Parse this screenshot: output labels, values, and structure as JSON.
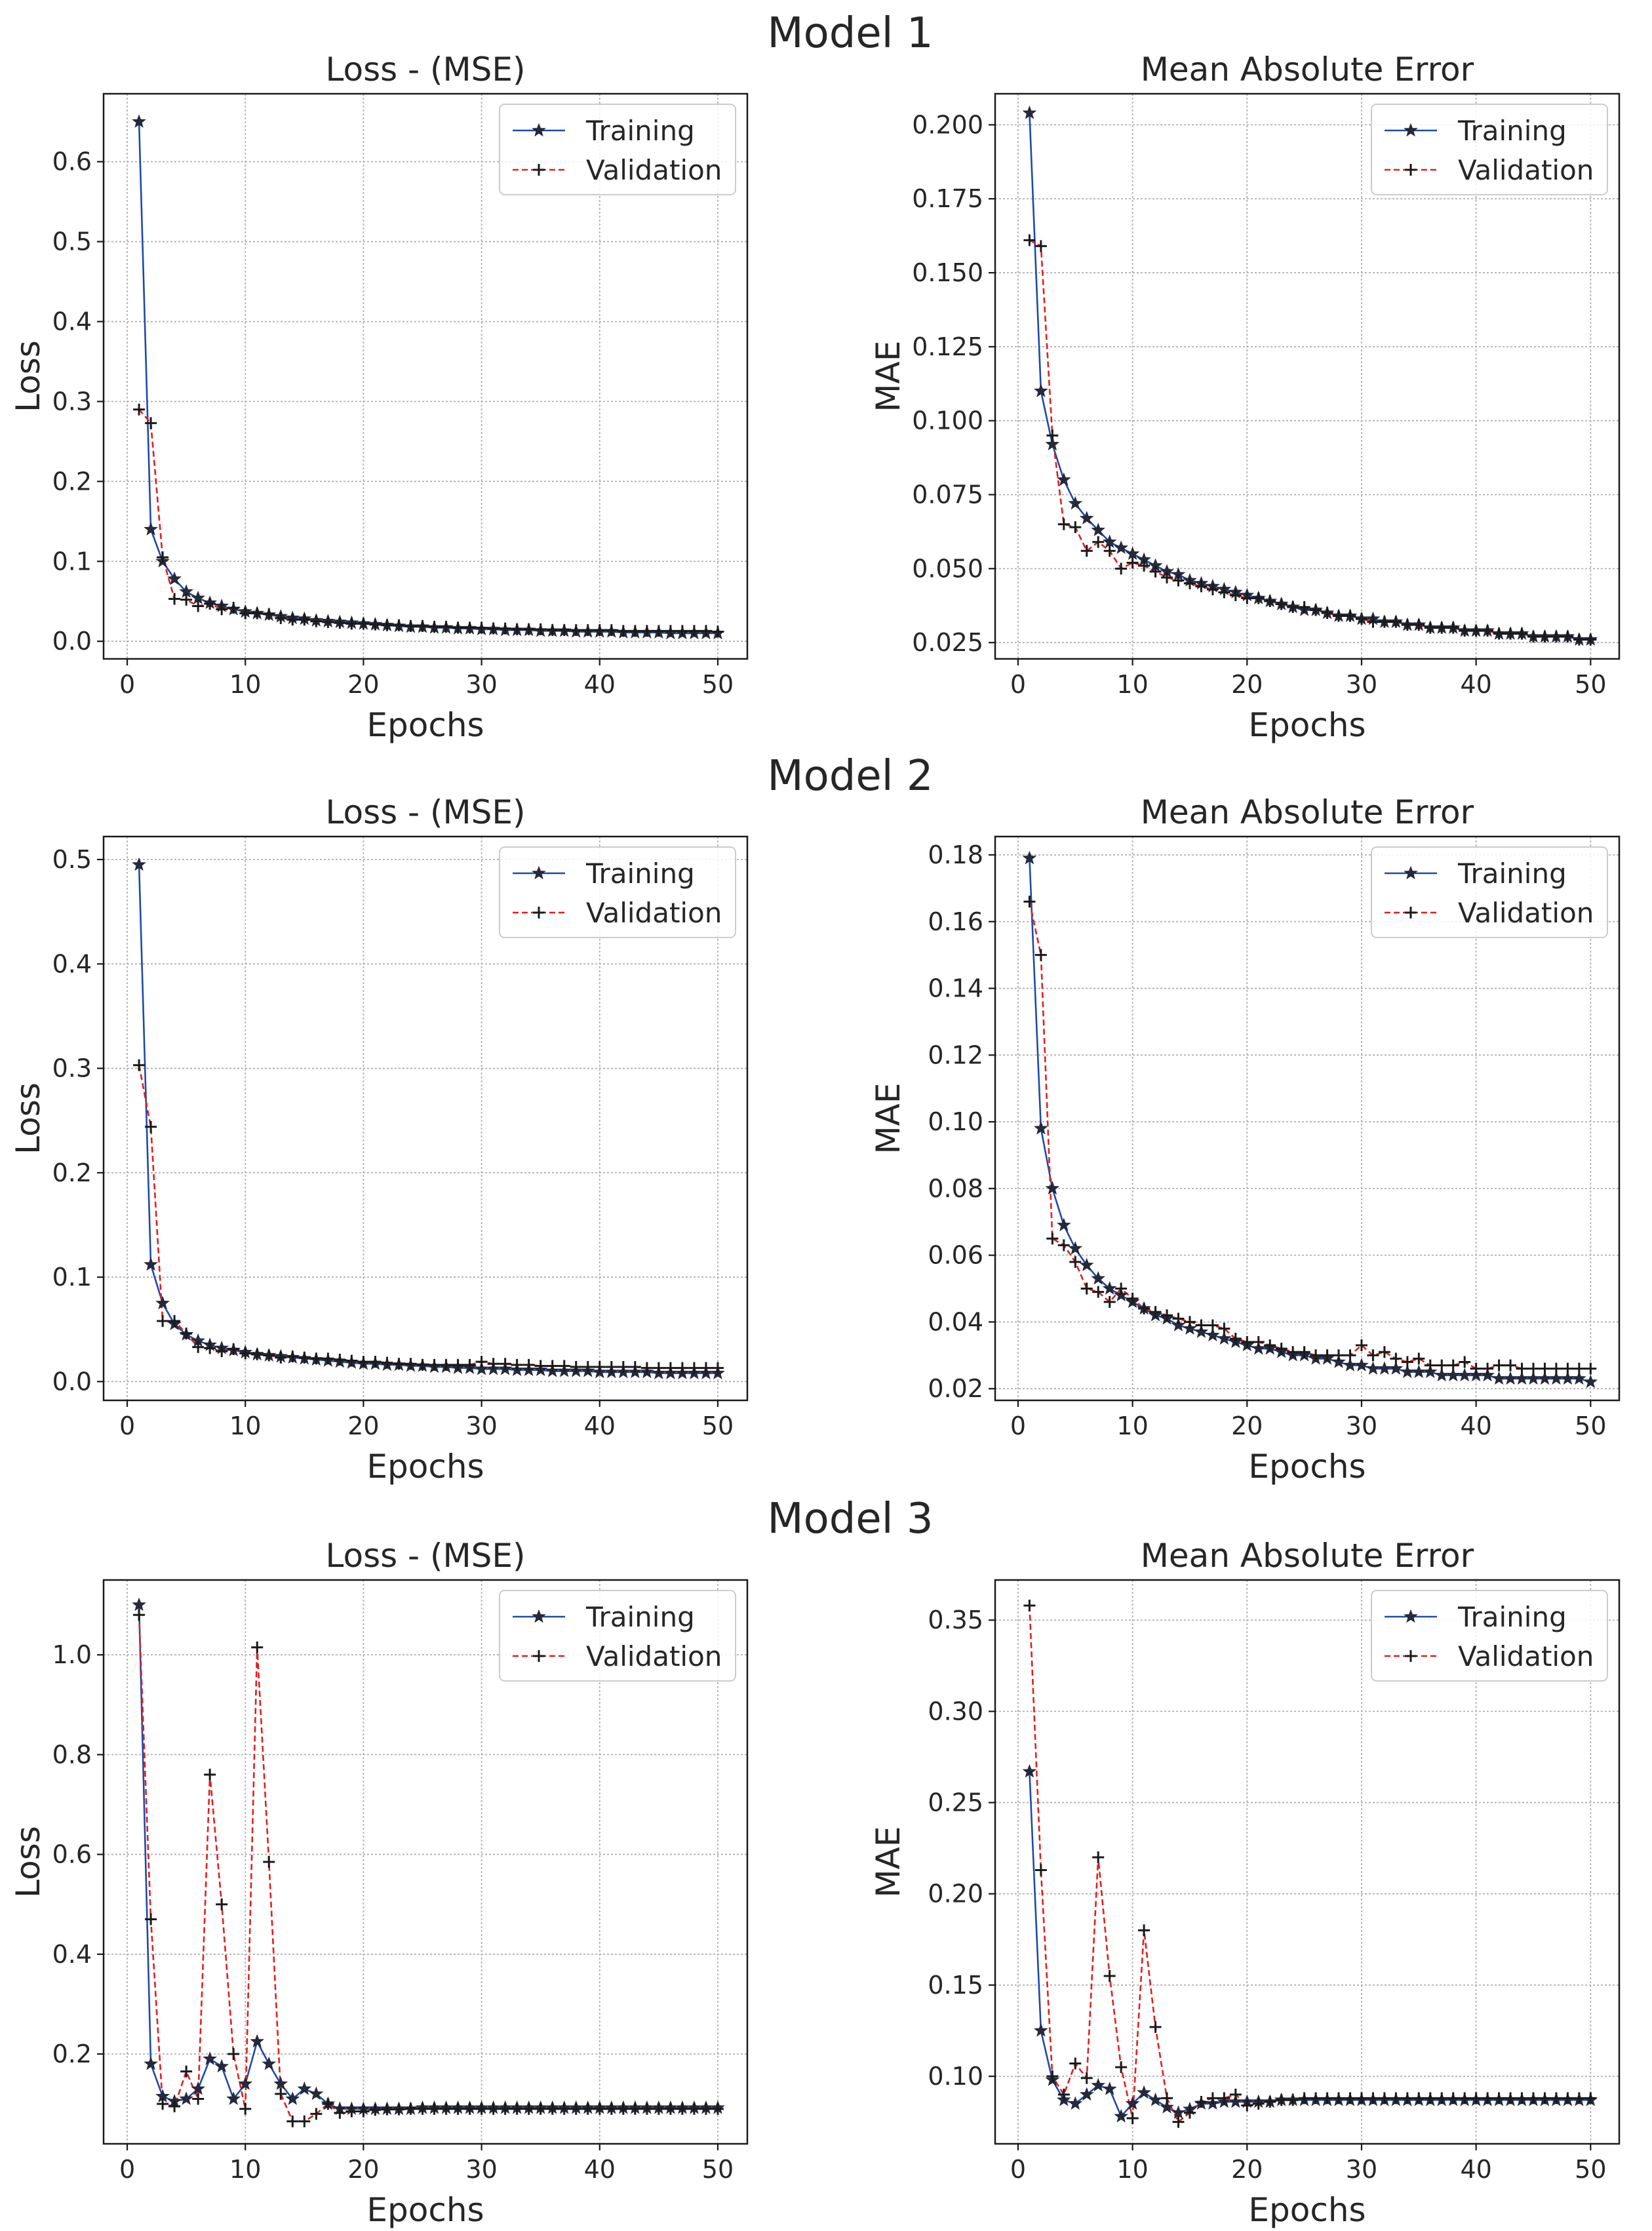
{
  "figure": {
    "models": [
      "Model 1",
      "Model 2",
      "Model 3"
    ]
  },
  "chart_data": [
    {
      "type": "line",
      "model": "Model 1",
      "title": "Loss - (MSE)",
      "xlabel": "Epochs",
      "ylabel": "Loss",
      "xlim": [
        -2,
        52.5
      ],
      "ylim": [
        -0.022,
        0.685
      ],
      "xticks": [
        0,
        10,
        20,
        30,
        40,
        50
      ],
      "xtick_labels": [
        "0",
        "10",
        "20",
        "30",
        "40",
        "50"
      ],
      "yticks": [
        0.0,
        0.1,
        0.2,
        0.3,
        0.4,
        0.5,
        0.6
      ],
      "ytick_labels": [
        "0.0",
        "0.1",
        "0.2",
        "0.3",
        "0.4",
        "0.5",
        "0.6"
      ],
      "legend": [
        "Training",
        "Validation"
      ],
      "legend_position": "top-right",
      "series": [
        {
          "name": "Training",
          "values": [
            0.65,
            0.14,
            0.1,
            0.078,
            0.062,
            0.054,
            0.048,
            0.044,
            0.04,
            0.037,
            0.035,
            0.033,
            0.031,
            0.029,
            0.028,
            0.026,
            0.025,
            0.024,
            0.023,
            0.022,
            0.021,
            0.02,
            0.019,
            0.018,
            0.018,
            0.017,
            0.017,
            0.016,
            0.016,
            0.015,
            0.015,
            0.014,
            0.014,
            0.014,
            0.013,
            0.013,
            0.013,
            0.012,
            0.012,
            0.012,
            0.012,
            0.011,
            0.011,
            0.011,
            0.011,
            0.01,
            0.01,
            0.01,
            0.01,
            0.01
          ]
        },
        {
          "name": "Validation",
          "values": [
            0.29,
            0.273,
            0.105,
            0.053,
            0.052,
            0.044,
            0.047,
            0.04,
            0.042,
            0.035,
            0.035,
            0.034,
            0.029,
            0.027,
            0.027,
            0.025,
            0.024,
            0.023,
            0.022,
            0.022,
            0.021,
            0.02,
            0.02,
            0.019,
            0.019,
            0.018,
            0.018,
            0.017,
            0.017,
            0.017,
            0.016,
            0.016,
            0.015,
            0.015,
            0.015,
            0.014,
            0.014,
            0.014,
            0.014,
            0.014,
            0.014,
            0.013,
            0.013,
            0.013,
            0.013,
            0.013,
            0.013,
            0.013,
            0.013,
            0.012
          ]
        }
      ]
    },
    {
      "type": "line",
      "model": "Model 1",
      "title": "Mean Absolute Error",
      "xlabel": "Epochs",
      "ylabel": "MAE",
      "xlim": [
        -2,
        52.5
      ],
      "ylim": [
        0.0195,
        0.2105
      ],
      "xticks": [
        0,
        10,
        20,
        30,
        40,
        50
      ],
      "xtick_labels": [
        "0",
        "10",
        "20",
        "30",
        "40",
        "50"
      ],
      "yticks": [
        0.025,
        0.05,
        0.075,
        0.1,
        0.125,
        0.15,
        0.175,
        0.2
      ],
      "ytick_labels": [
        "0.025",
        "0.050",
        "0.075",
        "0.100",
        "0.125",
        "0.150",
        "0.175",
        "0.200"
      ],
      "legend": [
        "Training",
        "Validation"
      ],
      "legend_position": "top-right",
      "series": [
        {
          "name": "Training",
          "values": [
            0.204,
            0.11,
            0.092,
            0.08,
            0.072,
            0.067,
            0.063,
            0.059,
            0.057,
            0.055,
            0.053,
            0.051,
            0.049,
            0.048,
            0.046,
            0.045,
            0.044,
            0.043,
            0.042,
            0.041,
            0.04,
            0.039,
            0.038,
            0.037,
            0.036,
            0.036,
            0.035,
            0.034,
            0.034,
            0.033,
            0.033,
            0.032,
            0.032,
            0.031,
            0.031,
            0.03,
            0.03,
            0.03,
            0.029,
            0.029,
            0.029,
            0.028,
            0.028,
            0.028,
            0.027,
            0.027,
            0.027,
            0.027,
            0.026,
            0.026
          ]
        },
        {
          "name": "Validation",
          "values": [
            0.161,
            0.159,
            0.095,
            0.065,
            0.064,
            0.056,
            0.059,
            0.056,
            0.05,
            0.052,
            0.051,
            0.049,
            0.047,
            0.046,
            0.045,
            0.044,
            0.043,
            0.042,
            0.041,
            0.04,
            0.04,
            0.039,
            0.038,
            0.037,
            0.037,
            0.036,
            0.035,
            0.034,
            0.034,
            0.033,
            0.032,
            0.032,
            0.032,
            0.031,
            0.031,
            0.03,
            0.03,
            0.03,
            0.029,
            0.029,
            0.029,
            0.028,
            0.028,
            0.028,
            0.027,
            0.027,
            0.027,
            0.027,
            0.026,
            0.026
          ]
        }
      ]
    },
    {
      "type": "line",
      "model": "Model 2",
      "title": "Loss - (MSE)",
      "xlabel": "Epochs",
      "ylabel": "Loss",
      "xlim": [
        -2,
        52.5
      ],
      "ylim": [
        -0.018,
        0.522
      ],
      "xticks": [
        0,
        10,
        20,
        30,
        40,
        50
      ],
      "xtick_labels": [
        "0",
        "10",
        "20",
        "30",
        "40",
        "50"
      ],
      "yticks": [
        0.0,
        0.1,
        0.2,
        0.3,
        0.4,
        0.5
      ],
      "ytick_labels": [
        "0.0",
        "0.1",
        "0.2",
        "0.3",
        "0.4",
        "0.5"
      ],
      "legend": [
        "Training",
        "Validation"
      ],
      "legend_position": "top-right",
      "series": [
        {
          "name": "Training",
          "values": [
            0.495,
            0.112,
            0.075,
            0.055,
            0.045,
            0.039,
            0.035,
            0.032,
            0.03,
            0.028,
            0.026,
            0.025,
            0.024,
            0.023,
            0.022,
            0.021,
            0.02,
            0.019,
            0.018,
            0.017,
            0.017,
            0.016,
            0.016,
            0.015,
            0.015,
            0.014,
            0.014,
            0.013,
            0.013,
            0.012,
            0.012,
            0.012,
            0.011,
            0.011,
            0.011,
            0.01,
            0.01,
            0.01,
            0.01,
            0.009,
            0.009,
            0.009,
            0.009,
            0.009,
            0.008,
            0.008,
            0.008,
            0.008,
            0.008,
            0.008
          ]
        },
        {
          "name": "Validation",
          "values": [
            0.303,
            0.244,
            0.058,
            0.058,
            0.046,
            0.033,
            0.032,
            0.029,
            0.031,
            0.027,
            0.026,
            0.025,
            0.023,
            0.024,
            0.023,
            0.022,
            0.022,
            0.021,
            0.02,
            0.019,
            0.019,
            0.018,
            0.017,
            0.017,
            0.016,
            0.016,
            0.016,
            0.016,
            0.016,
            0.019,
            0.017,
            0.017,
            0.016,
            0.016,
            0.015,
            0.015,
            0.015,
            0.014,
            0.014,
            0.014,
            0.014,
            0.014,
            0.014,
            0.013,
            0.013,
            0.013,
            0.013,
            0.013,
            0.013,
            0.013
          ]
        }
      ]
    },
    {
      "type": "line",
      "model": "Model 2",
      "title": "Mean Absolute Error",
      "xlabel": "Epochs",
      "ylabel": "MAE",
      "xlim": [
        -2,
        52.5
      ],
      "ylim": [
        0.0165,
        0.1855
      ],
      "xticks": [
        0,
        10,
        20,
        30,
        40,
        50
      ],
      "xtick_labels": [
        "0",
        "10",
        "20",
        "30",
        "40",
        "50"
      ],
      "yticks": [
        0.02,
        0.04,
        0.06,
        0.08,
        0.1,
        0.12,
        0.14,
        0.16,
        0.18
      ],
      "ytick_labels": [
        "0.02",
        "0.04",
        "0.06",
        "0.08",
        "0.10",
        "0.12",
        "0.14",
        "0.16",
        "0.18"
      ],
      "legend": [
        "Training",
        "Validation"
      ],
      "legend_position": "top-right",
      "series": [
        {
          "name": "Training",
          "values": [
            0.179,
            0.098,
            0.08,
            0.069,
            0.062,
            0.057,
            0.053,
            0.05,
            0.048,
            0.046,
            0.044,
            0.042,
            0.041,
            0.039,
            0.038,
            0.037,
            0.036,
            0.035,
            0.034,
            0.033,
            0.032,
            0.032,
            0.031,
            0.03,
            0.03,
            0.029,
            0.029,
            0.028,
            0.027,
            0.027,
            0.026,
            0.026,
            0.026,
            0.025,
            0.025,
            0.025,
            0.024,
            0.024,
            0.024,
            0.024,
            0.024,
            0.023,
            0.023,
            0.023,
            0.023,
            0.023,
            0.023,
            0.023,
            0.023,
            0.022
          ]
        },
        {
          "name": "Validation",
          "values": [
            0.166,
            0.15,
            0.065,
            0.063,
            0.058,
            0.05,
            0.049,
            0.046,
            0.05,
            0.047,
            0.044,
            0.043,
            0.042,
            0.041,
            0.04,
            0.039,
            0.039,
            0.038,
            0.035,
            0.034,
            0.034,
            0.033,
            0.032,
            0.031,
            0.031,
            0.03,
            0.03,
            0.03,
            0.03,
            0.033,
            0.03,
            0.031,
            0.029,
            0.028,
            0.029,
            0.027,
            0.027,
            0.027,
            0.028,
            0.026,
            0.026,
            0.027,
            0.027,
            0.026,
            0.026,
            0.026,
            0.026,
            0.026,
            0.026,
            0.026
          ]
        }
      ]
    },
    {
      "type": "line",
      "model": "Model 3",
      "title": "Loss - (MSE)",
      "xlabel": "Epochs",
      "ylabel": "Loss",
      "xlim": [
        -2,
        52.5
      ],
      "ylim": [
        0.02,
        1.15
      ],
      "xticks": [
        0,
        10,
        20,
        30,
        40,
        50
      ],
      "xtick_labels": [
        "0",
        "10",
        "20",
        "30",
        "40",
        "50"
      ],
      "yticks": [
        0.2,
        0.4,
        0.6,
        0.8,
        1.0
      ],
      "ytick_labels": [
        "0.2",
        "0.4",
        "0.6",
        "0.8",
        "1.0"
      ],
      "legend": [
        "Training",
        "Validation"
      ],
      "legend_position": "top-right",
      "series": [
        {
          "name": "Training",
          "values": [
            1.1,
            0.18,
            0.115,
            0.105,
            0.11,
            0.13,
            0.19,
            0.175,
            0.11,
            0.14,
            0.225,
            0.18,
            0.14,
            0.11,
            0.13,
            0.12,
            0.1,
            0.09,
            0.09,
            0.09,
            0.09,
            0.09,
            0.09,
            0.09,
            0.092,
            0.092,
            0.092,
            0.092,
            0.092,
            0.092,
            0.092,
            0.092,
            0.092,
            0.092,
            0.092,
            0.092,
            0.092,
            0.092,
            0.092,
            0.092,
            0.092,
            0.092,
            0.092,
            0.092,
            0.092,
            0.092,
            0.092,
            0.092,
            0.092,
            0.092
          ]
        },
        {
          "name": "Validation",
          "values": [
            1.08,
            0.47,
            0.1,
            0.095,
            0.165,
            0.11,
            0.76,
            0.5,
            0.2,
            0.09,
            1.015,
            0.585,
            0.12,
            0.065,
            0.065,
            0.08,
            0.1,
            0.082,
            0.085,
            0.085,
            0.088,
            0.089,
            0.089,
            0.09,
            0.09,
            0.09,
            0.09,
            0.09,
            0.09,
            0.09,
            0.09,
            0.09,
            0.09,
            0.09,
            0.09,
            0.09,
            0.09,
            0.09,
            0.09,
            0.09,
            0.09,
            0.09,
            0.09,
            0.09,
            0.09,
            0.09,
            0.09,
            0.09,
            0.09,
            0.09
          ]
        }
      ]
    },
    {
      "type": "line",
      "model": "Model 3",
      "title": "Mean Absolute Error",
      "xlabel": "Epochs",
      "ylabel": "MAE",
      "xlim": [
        -2,
        52.5
      ],
      "ylim": [
        0.063,
        0.372
      ],
      "xticks": [
        0,
        10,
        20,
        30,
        40,
        50
      ],
      "xtick_labels": [
        "0",
        "10",
        "20",
        "30",
        "40",
        "50"
      ],
      "yticks": [
        0.1,
        0.15,
        0.2,
        0.25,
        0.3,
        0.35
      ],
      "ytick_labels": [
        "0.10",
        "0.15",
        "0.20",
        "0.25",
        "0.30",
        "0.35"
      ],
      "legend": [
        "Training",
        "Validation"
      ],
      "legend_position": "top-right",
      "series": [
        {
          "name": "Training",
          "values": [
            0.267,
            0.125,
            0.098,
            0.087,
            0.085,
            0.09,
            0.095,
            0.093,
            0.078,
            0.085,
            0.091,
            0.087,
            0.083,
            0.08,
            0.082,
            0.085,
            0.085,
            0.086,
            0.086,
            0.086,
            0.086,
            0.086,
            0.087,
            0.087,
            0.087,
            0.087,
            0.087,
            0.087,
            0.087,
            0.087,
            0.087,
            0.087,
            0.087,
            0.087,
            0.087,
            0.087,
            0.087,
            0.087,
            0.087,
            0.087,
            0.087,
            0.087,
            0.087,
            0.087,
            0.087,
            0.087,
            0.087,
            0.087,
            0.087,
            0.087
          ]
        },
        {
          "name": "Validation",
          "values": [
            0.358,
            0.213,
            0.1,
            0.09,
            0.107,
            0.099,
            0.22,
            0.155,
            0.105,
            0.077,
            0.18,
            0.127,
            0.088,
            0.075,
            0.08,
            0.086,
            0.088,
            0.088,
            0.09,
            0.084,
            0.085,
            0.086,
            0.087,
            0.087,
            0.088,
            0.088,
            0.088,
            0.088,
            0.088,
            0.088,
            0.088,
            0.088,
            0.088,
            0.088,
            0.088,
            0.088,
            0.088,
            0.088,
            0.088,
            0.088,
            0.088,
            0.088,
            0.088,
            0.088,
            0.088,
            0.088,
            0.088,
            0.088,
            0.088,
            0.088
          ]
        }
      ]
    }
  ]
}
